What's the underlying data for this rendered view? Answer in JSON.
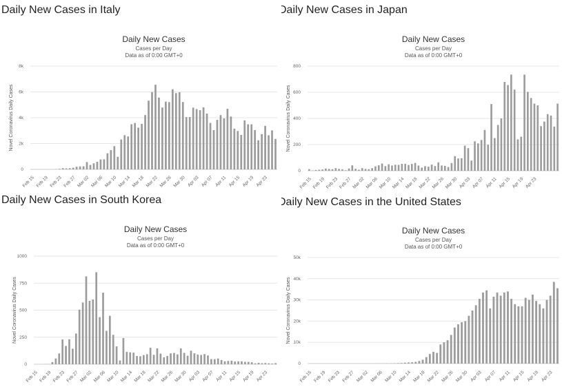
{
  "chart_data": [
    {
      "type": "bar",
      "heading": "Daily New Cases in Italy",
      "title": "Daily New Cases",
      "subtitle": [
        "Cases per Day",
        "Data as of 0:00 GMT+0"
      ],
      "ylabel": "Novel Coronavirus Daily Cases",
      "xlabel": "",
      "ylim": [
        0,
        8000
      ],
      "yticks": [
        0,
        2000,
        4000,
        6000,
        8000
      ],
      "ytick_labels": [
        "0",
        "2k",
        "4k",
        "6k",
        "8k"
      ],
      "grid": true,
      "start_date": "Feb 15",
      "xtick_labels": [
        "Feb 15",
        "Feb 19",
        "Feb 23",
        "Feb 27",
        "Mar 02",
        "Mar 06",
        "Mar 10",
        "Mar 14",
        "Mar 18",
        "Mar 22",
        "Mar 26",
        "Mar 30",
        "Apr 03",
        "Apr 07",
        "Apr 11",
        "Apr 15",
        "Apr 19",
        "Apr 23"
      ],
      "values": [
        0,
        0,
        0,
        0,
        0,
        0,
        1,
        17,
        41,
        93,
        74,
        93,
        131,
        202,
        233,
        240,
        566,
        342,
        466,
        587,
        769,
        778,
        1247,
        1492,
        1797,
        977,
        2313,
        2651,
        2547,
        3497,
        3590,
        3233,
        3526,
        4207,
        5322,
        5986,
        6557,
        5560,
        4789,
        5249,
        5210,
        6203,
        5909,
        5974,
        5217,
        4050,
        4053,
        4782,
        4668,
        4585,
        4805,
        4316,
        3599,
        3039,
        3836,
        4204,
        3951,
        4694,
        4092,
        3153,
        2972,
        2667,
        3786,
        3493,
        3491,
        3047,
        2256,
        2729,
        3370,
        2646,
        3021,
        2357
      ]
    },
    {
      "type": "bar",
      "heading": "Daily New Cases in Japan",
      "title": "Daily New Cases",
      "subtitle": [
        "Cases per Day",
        "Data as of 0:00 GMT+0"
      ],
      "ylabel": "Novel Coronavirus Daily Cases",
      "xlabel": "",
      "ylim": [
        0,
        800
      ],
      "yticks": [
        0,
        200,
        400,
        600,
        800
      ],
      "ytick_labels": [
        "0",
        "200",
        "400",
        "600",
        "800"
      ],
      "grid": true,
      "start_date": "Feb 15",
      "xtick_labels": [
        "Feb 15",
        "Feb 19",
        "Feb 23",
        "Feb 27",
        "Mar 02",
        "Mar 06",
        "Mar 10",
        "Mar 14",
        "Mar 18",
        "Mar 22",
        "Mar 26",
        "Mar 30",
        "Apr 03",
        "Apr 07",
        "Apr 11",
        "Apr 15",
        "Apr 19",
        "Apr 23"
      ],
      "values": [
        12,
        2,
        6,
        8,
        10,
        17,
        14,
        12,
        20,
        14,
        11,
        4,
        17,
        41,
        15,
        8,
        20,
        14,
        12,
        20,
        33,
        42,
        55,
        35,
        49,
        40,
        46,
        45,
        53,
        53,
        44,
        52,
        60,
        40,
        24,
        35,
        31,
        47,
        36,
        64,
        40,
        37,
        28,
        59,
        112,
        94,
        96,
        192,
        173,
        78,
        225,
        209,
        235,
        312,
        199,
        510,
        250,
        350,
        400,
        679,
        655,
        735,
        620,
        240,
        260,
        735,
        603,
        556,
        513,
        500,
        341,
        376,
        433,
        422,
        338,
        513
      ]
    },
    {
      "type": "bar",
      "heading": "Daily New Cases in South Korea",
      "title": "Daily New Cases",
      "subtitle": [
        "Cases per Day",
        "Data as of 0:00 GMT+0"
      ],
      "ylabel": "Novel Coronavirus Daily Cases",
      "xlabel": "",
      "ylim": [
        0,
        1000
      ],
      "yticks": [
        0,
        250,
        500,
        750,
        1000
      ],
      "ytick_labels": [
        "0",
        "250",
        "500",
        "750",
        "1000"
      ],
      "grid": true,
      "start_date": "Feb 15",
      "xtick_labels": [
        "Feb 15",
        "Feb 19",
        "Feb 23",
        "Feb 27",
        "Mar 02",
        "Mar 06",
        "Mar 10",
        "Mar 14",
        "Mar 18",
        "Mar 22",
        "Mar 26",
        "Mar 30",
        "Apr 03",
        "Apr 07",
        "Apr 11",
        "Apr 15",
        "Apr 19",
        "Apr 23"
      ],
      "values": [
        0,
        0,
        0,
        1,
        1,
        20,
        53,
        100,
        229,
        169,
        231,
        144,
        284,
        505,
        571,
        813,
        586,
        599,
        851,
        435,
        662,
        309,
        448,
        272,
        165,
        35,
        242,
        114,
        110,
        107,
        76,
        74,
        84,
        93,
        152,
        87,
        147,
        98,
        64,
        76,
        100,
        104,
        91,
        146,
        105,
        78,
        125,
        101,
        89,
        86,
        94,
        81,
        47,
        47,
        53,
        39,
        27,
        30,
        32,
        25,
        27,
        27,
        22,
        22,
        18,
        8,
        13,
        9,
        11,
        8,
        6,
        10
      ]
    },
    {
      "type": "bar",
      "heading": "Daily New Cases in the United States",
      "title": "Daily New Cases",
      "subtitle": [
        "Cases per Day",
        "Data as of 0:00 GMT+0"
      ],
      "ylabel": "Novel Coronavirus Daily Cases",
      "xlabel": "",
      "ylim": [
        0,
        50000
      ],
      "yticks": [
        0,
        10000,
        20000,
        30000,
        40000,
        50000
      ],
      "ytick_labels": [
        "0",
        "10k",
        "20k",
        "30k",
        "40k",
        "50k"
      ],
      "grid": true,
      "start_date": "Feb 15",
      "xtick_labels": [
        "Feb 15",
        "Feb 19",
        "Feb 23",
        "Feb 27",
        "Mar 02",
        "Mar 06",
        "Mar 10",
        "Mar 14",
        "Mar 18",
        "Mar 22",
        "Mar 26",
        "Mar 30",
        "Apr 03",
        "Apr 07",
        "Apr 11",
        "Apr 15",
        "Apr 19",
        "Apr 23"
      ],
      "values": [
        0,
        0,
        0,
        0,
        0,
        0,
        0,
        0,
        0,
        0,
        0,
        0,
        0,
        0,
        0,
        0,
        5,
        8,
        16,
        25,
        30,
        43,
        70,
        85,
        150,
        200,
        250,
        400,
        500,
        600,
        800,
        1200,
        1800,
        3000,
        4500,
        5500,
        5000,
        9000,
        10000,
        11000,
        13500,
        17000,
        18500,
        19500,
        20000,
        22500,
        25000,
        27500,
        30500,
        33500,
        34500,
        26000,
        31500,
        33500,
        32000,
        33500,
        34000,
        30500,
        28000,
        27000,
        27000,
        31000,
        30000,
        32500,
        29500,
        28000,
        26000,
        30000,
        32000,
        38500,
        35500
      ]
    }
  ]
}
